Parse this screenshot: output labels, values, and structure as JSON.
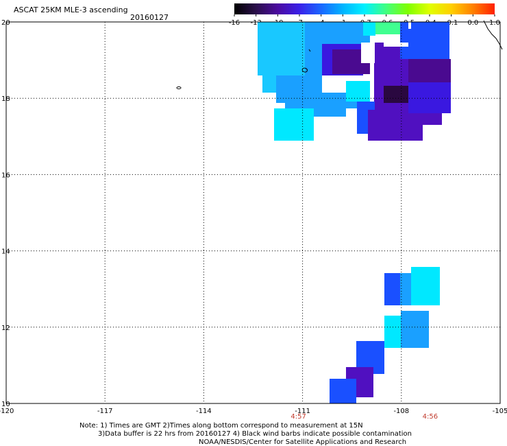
{
  "header": {
    "title": "ASCAT 25KM MLE-3 ascending",
    "date": "20160127"
  },
  "colorbar": {
    "labels": [
      "-16",
      "-13",
      "-10",
      "-7",
      "-4",
      "-1",
      "-0.7",
      "-0.6",
      "-0.5",
      "-0.4",
      "-0.1",
      "0.0",
      "1.0"
    ],
    "colors": [
      "#000000",
      "#2a0e4a",
      "#4b0aa0",
      "#3a20e8",
      "#1a66ff",
      "#00b4ff",
      "#00f0ff",
      "#40ff80",
      "#80ff00",
      "#e0ff00",
      "#ffd000",
      "#ff8000",
      "#ff2000"
    ]
  },
  "map": {
    "lon_ticks": [
      "-120",
      "-117",
      "-114",
      "-111",
      "-108",
      "-105"
    ],
    "lon_values": [
      -120,
      -117,
      -114,
      -111,
      -108,
      -105
    ],
    "lat_ticks": [
      "10",
      "12",
      "14",
      "16",
      "18",
      "20"
    ],
    "lat_values": [
      10,
      12,
      14,
      16,
      18,
      20
    ],
    "lon_range": [
      -120,
      -105
    ],
    "lat_range": [
      10,
      20
    ],
    "grid": "dotted",
    "pass_times": [
      {
        "label": "4:57",
        "lon": -111
      },
      {
        "label": "4:56",
        "lon": -107
      }
    ],
    "swath_colors": {
      "cyan_light": "#19c8ff",
      "sky": "#1aa0ff",
      "blue": "#1a50ff",
      "indigo": "#3a18e0",
      "violet": "#5010c0",
      "deep": "#4a0a90",
      "darkest": "#2a0840",
      "aqua": "#00e8ff",
      "green": "#40ff90"
    }
  },
  "footer": {
    "line1": "Note: 1) Times are GMT 2)Times along bottom correspond to measurement at 15N",
    "line2": "3)Data buffer is 22 hrs from 20160127 4) Black wind barbs indicate possible contamination",
    "line3": "NOAA/NESDIS/Center for Satellite Applications and Research"
  }
}
